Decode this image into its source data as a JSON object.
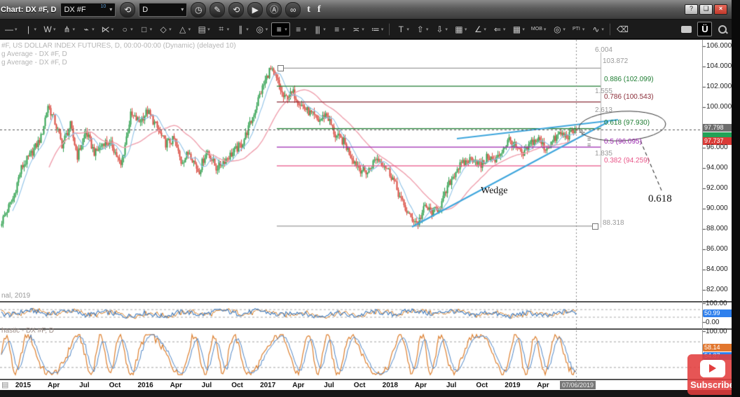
{
  "window": {
    "title": "Chart: DX #F, D",
    "controls": {
      "help": "?",
      "restore": "❏",
      "close": "×"
    }
  },
  "toolbar_top": {
    "symbol_value": "DX #F",
    "symbol_sup": "10",
    "period_value": "D",
    "icons": [
      {
        "name": "history-refresh-icon",
        "glyph": "⟲",
        "round": true
      },
      {
        "name": "period-slot",
        "glyph": "",
        "dropdown": "period"
      },
      {
        "name": "clock-icon",
        "glyph": "◷",
        "round": true
      },
      {
        "name": "pencil-icon",
        "glyph": "✎",
        "round": true
      },
      {
        "name": "replay-icon",
        "glyph": "⟲",
        "round": true
      },
      {
        "name": "play-icon",
        "glyph": "▶",
        "round": true
      },
      {
        "name": "auto-icon",
        "glyph": "Ⓐ",
        "round": true
      },
      {
        "name": "link-icon",
        "glyph": "∞",
        "round": true
      }
    ],
    "social": [
      {
        "name": "twitter-icon",
        "glyph": "t"
      },
      {
        "name": "facebook-icon",
        "glyph": "f"
      }
    ]
  },
  "toolbar_draw": {
    "tools": [
      {
        "name": "trend-line-tool",
        "glyph": "—",
        "caret": true
      },
      {
        "name": "vertical-line-tool",
        "glyph": "|",
        "caret": true
      },
      {
        "name": "zigzag-tool",
        "glyph": "W",
        "caret": true
      },
      {
        "name": "pitchfork-tool",
        "glyph": "⋔",
        "caret": true
      },
      {
        "name": "flash-tool",
        "glyph": "⌁",
        "caret": true
      },
      {
        "name": "fan-tool",
        "glyph": "⋉",
        "caret": true
      },
      {
        "name": "ellipse-tool",
        "glyph": "○",
        "caret": true
      },
      {
        "name": "rectangle-tool",
        "glyph": "□",
        "caret": true
      },
      {
        "name": "diamond-tool",
        "glyph": "◇",
        "caret": true
      },
      {
        "name": "triangle-tool",
        "glyph": "△",
        "caret": true
      },
      {
        "name": "hatch-tool",
        "glyph": "▤",
        "caret": true
      },
      {
        "name": "grid-lines-tool",
        "glyph": "⌗",
        "caret": true
      },
      {
        "name": "parallel-lines-tool",
        "glyph": "∥",
        "caret": true
      },
      {
        "name": "target-tool",
        "glyph": "◎",
        "caret": true
      },
      {
        "name": "list-box-tool",
        "glyph": "≡",
        "caret": true,
        "selected": true
      },
      {
        "name": "lines-tool",
        "glyph": "≡",
        "caret": true
      },
      {
        "name": "columns-tool",
        "glyph": "|||",
        "caret": true
      },
      {
        "name": "stack-tool",
        "glyph": "≡",
        "caret": true
      },
      {
        "name": "dash-tool",
        "glyph": "≍",
        "caret": true
      },
      {
        "name": "dotted-tool",
        "glyph": "≔",
        "caret": true
      },
      {
        "name": "separator",
        "sep": true
      },
      {
        "name": "text-tool",
        "glyph": "T",
        "caret": true
      },
      {
        "name": "arrow-up-tool",
        "glyph": "⇧",
        "caret": true
      },
      {
        "name": "arrow-down-tool",
        "glyph": "⇩",
        "caret": true
      },
      {
        "name": "shade-tool",
        "glyph": "▦",
        "caret": true
      },
      {
        "name": "angle-tool",
        "glyph": "∠",
        "caret": true
      },
      {
        "name": "arrow-left-tool",
        "glyph": "⇐",
        "caret": true
      },
      {
        "name": "table-tool",
        "glyph": "▦",
        "caret": true
      },
      {
        "name": "mob-tool",
        "glyph": "MOB",
        "caret": true,
        "small": true
      },
      {
        "name": "circle12-tool",
        "glyph": "◎",
        "caret": true
      },
      {
        "name": "pti-tool",
        "glyph": "PTI",
        "caret": true,
        "small": true
      },
      {
        "name": "wave-tool",
        "glyph": "∿",
        "caret": true
      },
      {
        "name": "separator",
        "sep": true
      },
      {
        "name": "eraser-tool",
        "glyph": "⌫"
      }
    ],
    "right": {
      "u_button": "Ü"
    }
  },
  "legend": {
    "line1": "#F, US DOLLAR INDEX FUTURES, D, 00:00-00:00 (Dynamic) (delayed 10)",
    "line2": "g Average - DX #F, D",
    "line3": "g Average - DX #F, D"
  },
  "chart": {
    "watermark": "nal, 2019",
    "annotations": {
      "wedge": "Wedge",
      "fib_callout": "0.618"
    },
    "fib": {
      "anchor_top": "103.872",
      "anchor_bottom": "88.318",
      "ratios": [
        "6.004",
        "1.555",
        "2.613",
        "1.835"
      ],
      "levels": [
        {
          "label": "0.886 (102.099)",
          "price": 102.099,
          "color": "#1e7d32"
        },
        {
          "label": "0.786 (100.543)",
          "price": 100.543,
          "color": "#8b2e39"
        },
        {
          "label": "0.618 (97.930)",
          "price": 97.93,
          "color": "#1e7d32"
        },
        {
          "label": "0.5 (96.095)",
          "price": 96.095,
          "color": "#9c27b0"
        },
        {
          "label": "0.382 (94.259)",
          "price": 94.259,
          "color": "#e85487"
        }
      ],
      "anchor_top_price": 103.872,
      "anchor_bottom_price": 88.318
    },
    "price_axis": {
      "ticks": [
        "106.000",
        "104.000",
        "102.000",
        "100.000",
        "96.000",
        "94.000",
        "92.000",
        "90.000",
        "88.000",
        "86.000",
        "84.000",
        "82.000"
      ],
      "badge_last": "97.798",
      "badge_low": "97.737"
    },
    "colors": {
      "up": "#2fa14f",
      "down": "#d9493f",
      "ma_fast": "#8fc3e8",
      "ma_slow": "#f0a0ae",
      "wedge": "#3ea6dd",
      "fib_gray": "#9a9a9a",
      "rsi": "#3f7cc0",
      "rsi_alt": "#d9822b",
      "stoch_k": "#dd7f2e",
      "stoch_d": "#4f86c6",
      "badge_gray": "#6e6e6e",
      "badge_green": "#21a257",
      "badge_red": "#d93a36",
      "badge_blue": "#2f80ed",
      "badge_orange": "#e2772e"
    },
    "series_anchors": [
      [
        0,
        88.5
      ],
      [
        18,
        91
      ],
      [
        30,
        94
      ],
      [
        45,
        95.5
      ],
      [
        58,
        97
      ],
      [
        68,
        100.2
      ],
      [
        78,
        98.5
      ],
      [
        88,
        96.3
      ],
      [
        100,
        98.2
      ],
      [
        110,
        95.2
      ],
      [
        122,
        97.6
      ],
      [
        135,
        95.4
      ],
      [
        148,
        96.6
      ],
      [
        160,
        96.2
      ],
      [
        172,
        94.2
      ],
      [
        186,
        99.2
      ],
      [
        198,
        98.6
      ],
      [
        210,
        99.6
      ],
      [
        222,
        98.2
      ],
      [
        235,
        96.4
      ],
      [
        248,
        96.8
      ],
      [
        258,
        94.6
      ],
      [
        270,
        95.6
      ],
      [
        283,
        93.6
      ],
      [
        295,
        95.8
      ],
      [
        308,
        94.0
      ],
      [
        320,
        94.8
      ],
      [
        333,
        95.6
      ],
      [
        345,
        96.4
      ],
      [
        358,
        98.6
      ],
      [
        370,
        101.2
      ],
      [
        385,
        103.8
      ],
      [
        395,
        102.6
      ],
      [
        405,
        100.8
      ],
      [
        418,
        101.4
      ],
      [
        430,
        100.2
      ],
      [
        442,
        99.4
      ],
      [
        455,
        98.6
      ],
      [
        465,
        99.4
      ],
      [
        478,
        97.2
      ],
      [
        490,
        96.6
      ],
      [
        502,
        95.0
      ],
      [
        514,
        93.9
      ],
      [
        524,
        93.6
      ],
      [
        536,
        95.0
      ],
      [
        548,
        94.4
      ],
      [
        560,
        93.0
      ],
      [
        572,
        90.8
      ],
      [
        584,
        89.2
      ],
      [
        596,
        88.6
      ],
      [
        606,
        90.2
      ],
      [
        616,
        89.6
      ],
      [
        628,
        90.2
      ],
      [
        640,
        92.4
      ],
      [
        652,
        94.0
      ],
      [
        664,
        94.6
      ],
      [
        676,
        95.0
      ],
      [
        686,
        94.2
      ],
      [
        696,
        95.2
      ],
      [
        706,
        94.6
      ],
      [
        716,
        95.8
      ],
      [
        726,
        96.8
      ],
      [
        736,
        96.0
      ],
      [
        746,
        95.2
      ],
      [
        758,
        96.6
      ],
      [
        768,
        96.8
      ],
      [
        778,
        95.9
      ],
      [
        788,
        96.6
      ],
      [
        798,
        97.4
      ],
      [
        808,
        97.1
      ],
      [
        816,
        97.5
      ],
      [
        822,
        97.8
      ]
    ]
  },
  "indicators": {
    "rsi": {
      "axis_top": "100.00",
      "axis_bottom": "0.00",
      "badge": "50.99"
    },
    "stoch": {
      "legend": "hastic - DX #F, D",
      "axis_top": "100.00",
      "axis_bottom": "-0.00",
      "badge_k": "58.14",
      "badge_d": "54.87"
    }
  },
  "xaxis": {
    "labels": [
      "2015",
      "Apr",
      "Jul",
      "Oct",
      "2016",
      "Apr",
      "Jul",
      "Oct",
      "2017",
      "Apr",
      "Jul",
      "Oct",
      "2018",
      "Apr",
      "Jul",
      "Oct",
      "2019",
      "Apr"
    ],
    "date_badge": "07/06/2019",
    "corner_icon": "▤"
  },
  "overlay": {
    "subscribe": "Subscribe"
  }
}
